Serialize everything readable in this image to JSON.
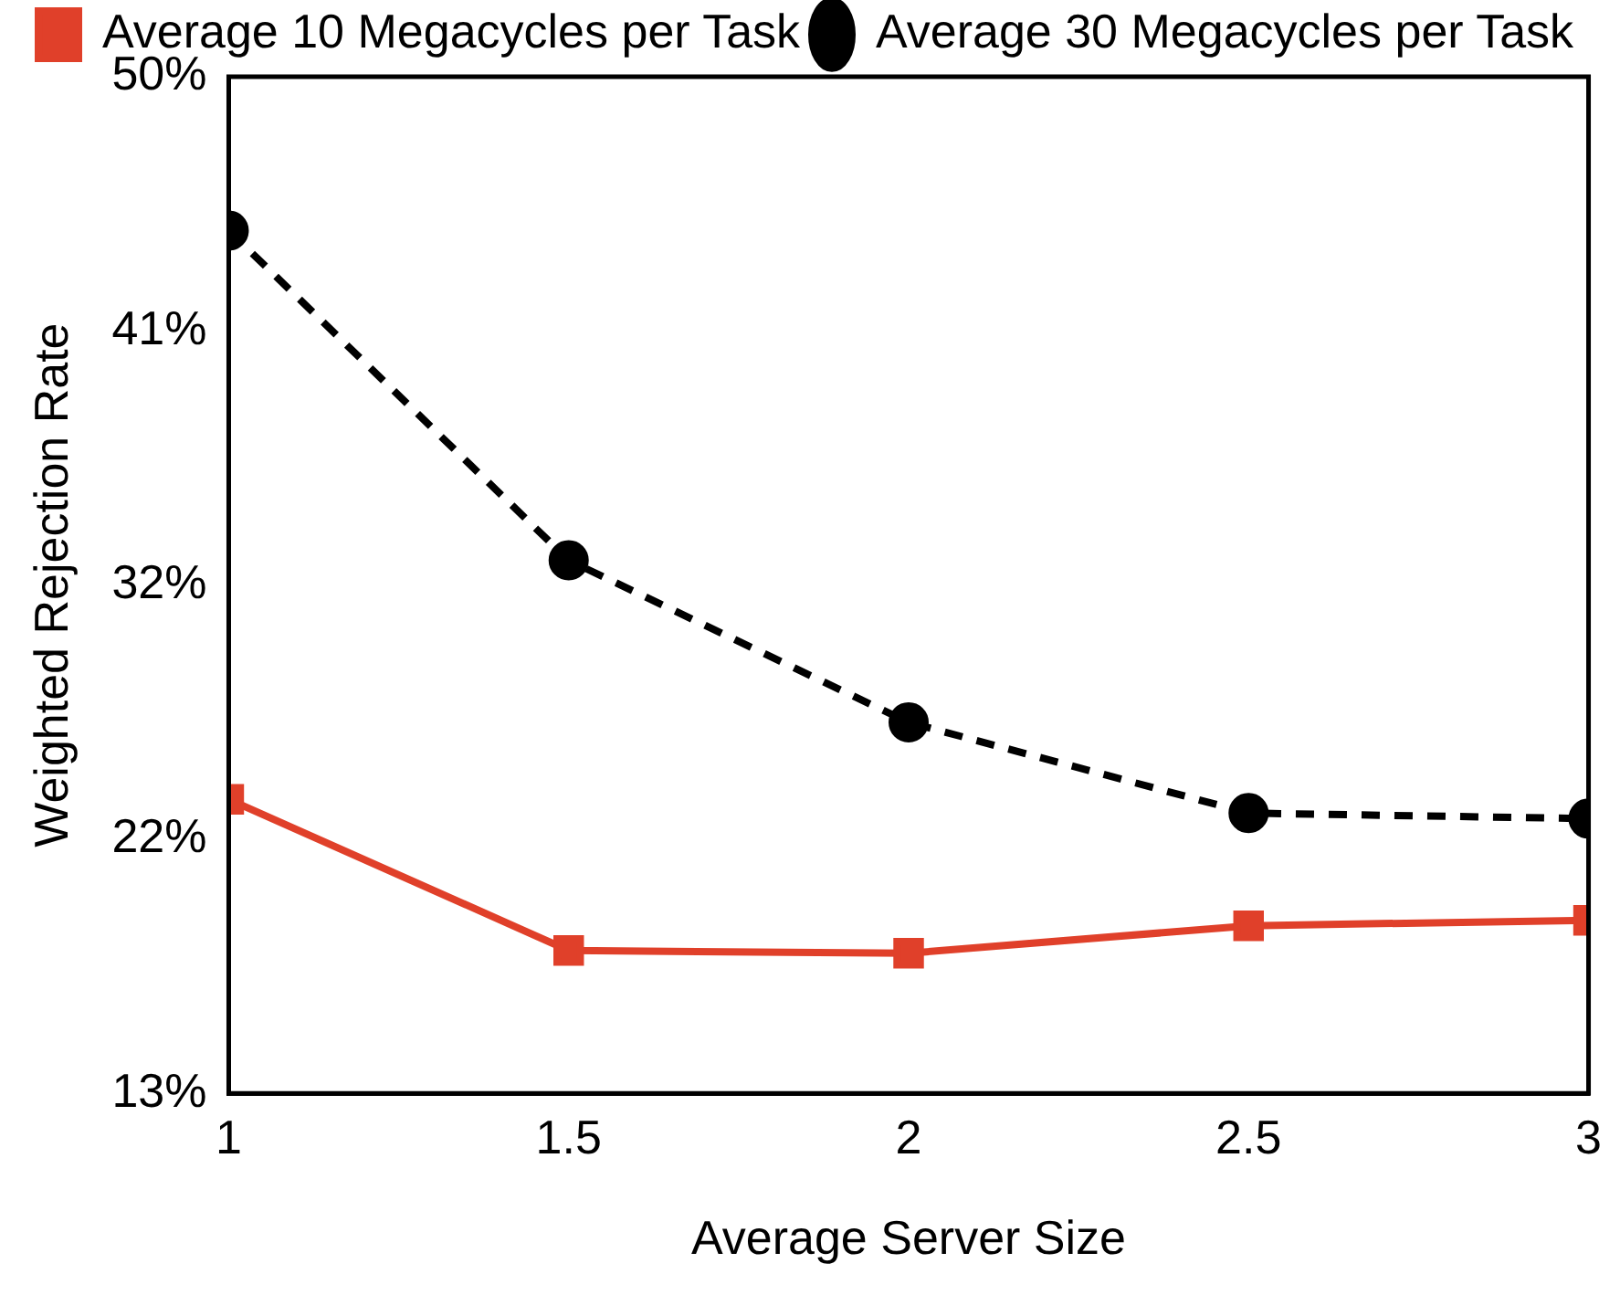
{
  "chart_data": {
    "type": "line",
    "xlabel": "Average Server Size",
    "ylabel": "Weighted Rejection Rate",
    "x": [
      1,
      1.5,
      2,
      2.5,
      3
    ],
    "series": [
      {
        "name": "Average 10 Megacycles per Task",
        "color": "#e0402a",
        "marker": "square",
        "line_style": "solid",
        "values": [
          23.7,
          18.2,
          18.1,
          19.1,
          19.3
        ]
      },
      {
        "name": "Average 30 Megacycles per Task",
        "color": "#000000",
        "marker": "circle",
        "line_style": "dashed",
        "values": [
          44.4,
          32.4,
          26.5,
          23.2,
          23.0
        ]
      }
    ],
    "xlim": [
      1,
      3
    ],
    "xticks": [
      1,
      1.5,
      2,
      2.5,
      3
    ],
    "ylim": [
      13,
      50
    ],
    "yticks": [
      {
        "value": 13,
        "label": "13%"
      },
      {
        "value": 22.25,
        "label": "22%"
      },
      {
        "value": 31.5,
        "label": "32%"
      },
      {
        "value": 40.75,
        "label": "41%"
      },
      {
        "value": 50,
        "label": "50%"
      }
    ],
    "legend": "top"
  }
}
